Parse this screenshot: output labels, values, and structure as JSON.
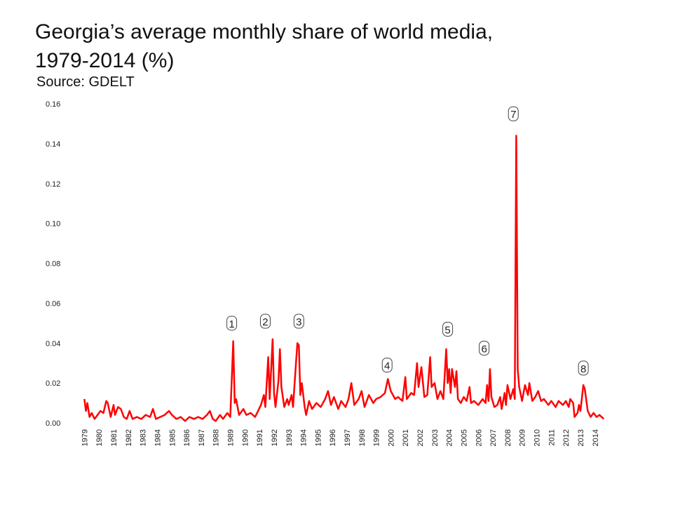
{
  "chart_data": {
    "type": "line",
    "title": [
      "Georgia’s average monthly share of world media,",
      "1979-2014 (%)"
    ],
    "subtitle": "Source: GDELT",
    "series": [
      {
        "name": "Georgia",
        "color": "#ff0000",
        "x": [
          1979.0,
          1979.1,
          1979.2,
          1979.35,
          1979.5,
          1979.7,
          1979.9,
          1980.1,
          1980.3,
          1980.5,
          1980.6,
          1980.8,
          1981.0,
          1981.1,
          1981.3,
          1981.5,
          1981.7,
          1981.9,
          1982.1,
          1982.3,
          1982.6,
          1982.9,
          1983.2,
          1983.5,
          1983.7,
          1983.9,
          1984.2,
          1984.5,
          1984.8,
          1985.0,
          1985.3,
          1985.6,
          1985.9,
          1986.2,
          1986.5,
          1986.8,
          1987.1,
          1987.4,
          1987.6,
          1987.8,
          1988.0,
          1988.3,
          1988.5,
          1988.8,
          1989.0,
          1989.2,
          1989.3,
          1989.4,
          1989.6,
          1989.9,
          1990.1,
          1990.4,
          1990.7,
          1990.9,
          1991.1,
          1991.3,
          1991.4,
          1991.6,
          1991.7,
          1991.9,
          1992.0,
          1992.1,
          1992.3,
          1992.4,
          1992.5,
          1992.7,
          1992.9,
          1993.0,
          1993.2,
          1993.3,
          1993.5,
          1993.6,
          1993.7,
          1993.8,
          1993.9,
          1994.1,
          1994.2,
          1994.4,
          1994.6,
          1994.9,
          1995.2,
          1995.5,
          1995.7,
          1995.9,
          1996.1,
          1996.4,
          1996.6,
          1996.9,
          1997.1,
          1997.3,
          1997.5,
          1997.8,
          1998.0,
          1998.2,
          1998.5,
          1998.8,
          1999.0,
          1999.3,
          1999.6,
          1999.8,
          2000.0,
          2000.3,
          2000.5,
          2000.8,
          2001.0,
          2001.1,
          2001.4,
          2001.6,
          2001.8,
          2001.9,
          2002.1,
          2002.3,
          2002.5,
          2002.7,
          2002.8,
          2003.0,
          2003.2,
          2003.4,
          2003.6,
          2003.8,
          2003.9,
          2004.0,
          2004.1,
          2004.2,
          2004.4,
          2004.5,
          2004.6,
          2004.8,
          2005.0,
          2005.2,
          2005.4,
          2005.5,
          2005.7,
          2006.0,
          2006.3,
          2006.5,
          2006.6,
          2006.7,
          2006.8,
          2006.9,
          2007.1,
          2007.3,
          2007.5,
          2007.6,
          2007.8,
          2007.9,
          2008.0,
          2008.2,
          2008.4,
          2008.5,
          2008.6,
          2008.7,
          2008.8,
          2009.0,
          2009.2,
          2009.4,
          2009.5,
          2009.7,
          2009.9,
          2010.1,
          2010.3,
          2010.5,
          2010.8,
          2011.0,
          2011.3,
          2011.5,
          2011.8,
          2012.0,
          2012.2,
          2012.3,
          2012.5,
          2012.6,
          2012.8,
          2012.9,
          2013.0,
          2013.2,
          2013.3,
          2013.5,
          2013.7,
          2013.9,
          2014.1,
          2014.3,
          2014.6
        ],
        "values": [
          0.012,
          0.006,
          0.01,
          0.003,
          0.005,
          0.002,
          0.004,
          0.006,
          0.005,
          0.011,
          0.01,
          0.003,
          0.009,
          0.004,
          0.008,
          0.007,
          0.003,
          0.002,
          0.006,
          0.002,
          0.003,
          0.002,
          0.004,
          0.003,
          0.007,
          0.002,
          0.003,
          0.004,
          0.006,
          0.004,
          0.002,
          0.003,
          0.001,
          0.003,
          0.002,
          0.003,
          0.002,
          0.004,
          0.006,
          0.002,
          0.001,
          0.004,
          0.002,
          0.005,
          0.003,
          0.041,
          0.01,
          0.012,
          0.004,
          0.007,
          0.004,
          0.005,
          0.003,
          0.006,
          0.009,
          0.014,
          0.008,
          0.033,
          0.012,
          0.042,
          0.015,
          0.008,
          0.021,
          0.037,
          0.018,
          0.008,
          0.012,
          0.009,
          0.014,
          0.008,
          0.03,
          0.04,
          0.039,
          0.014,
          0.02,
          0.008,
          0.004,
          0.011,
          0.007,
          0.01,
          0.008,
          0.012,
          0.016,
          0.009,
          0.013,
          0.007,
          0.011,
          0.008,
          0.012,
          0.02,
          0.009,
          0.012,
          0.016,
          0.008,
          0.014,
          0.01,
          0.012,
          0.013,
          0.015,
          0.022,
          0.016,
          0.012,
          0.013,
          0.011,
          0.023,
          0.012,
          0.015,
          0.014,
          0.03,
          0.018,
          0.028,
          0.013,
          0.014,
          0.033,
          0.018,
          0.02,
          0.012,
          0.016,
          0.012,
          0.037,
          0.02,
          0.027,
          0.015,
          0.027,
          0.018,
          0.026,
          0.012,
          0.01,
          0.013,
          0.011,
          0.018,
          0.01,
          0.011,
          0.009,
          0.012,
          0.01,
          0.019,
          0.011,
          0.027,
          0.013,
          0.008,
          0.009,
          0.013,
          0.007,
          0.015,
          0.009,
          0.019,
          0.012,
          0.017,
          0.012,
          0.144,
          0.027,
          0.018,
          0.011,
          0.019,
          0.014,
          0.02,
          0.011,
          0.013,
          0.016,
          0.011,
          0.012,
          0.009,
          0.011,
          0.008,
          0.011,
          0.009,
          0.011,
          0.008,
          0.012,
          0.01,
          0.003,
          0.005,
          0.009,
          0.006,
          0.019,
          0.017,
          0.006,
          0.003,
          0.005,
          0.003,
          0.004,
          0.002
        ]
      }
    ],
    "annotations": [
      {
        "text": "1",
        "x": 1989.1,
        "y": 0.05
      },
      {
        "text": "2",
        "x": 1991.4,
        "y": 0.051
      },
      {
        "text": "3",
        "x": 1993.7,
        "y": 0.051
      },
      {
        "text": "4",
        "x": 1999.75,
        "y": 0.029
      },
      {
        "text": "5",
        "x": 2003.9,
        "y": 0.047
      },
      {
        "text": "6",
        "x": 2006.4,
        "y": 0.0375
      },
      {
        "text": "7",
        "x": 2008.4,
        "y": 0.155
      },
      {
        "text": "8",
        "x": 2013.2,
        "y": 0.0275
      }
    ],
    "xlim": [
      1978.5,
      2015.5
    ],
    "xticks": [
      1979,
      1980,
      1981,
      1982,
      1983,
      1984,
      1985,
      1986,
      1987,
      1988,
      1989,
      1990,
      1991,
      1992,
      1993,
      1994,
      1995,
      1996,
      1997,
      1998,
      1999,
      2000,
      2001,
      2002,
      2003,
      2004,
      2005,
      2006,
      2007,
      2008,
      2009,
      2010,
      2011,
      2012,
      2013,
      2014
    ],
    "ylim": [
      0,
      0.16
    ],
    "yticks": [
      {
        "value": 0,
        "label": "0.00"
      },
      {
        "value": 0.02,
        "label": "0.02"
      },
      {
        "value": 0.04,
        "label": "0.04"
      },
      {
        "value": 0.06,
        "label": "0.06"
      },
      {
        "value": 0.08,
        "label": "0.08"
      },
      {
        "value": 0.1,
        "label": "0.10"
      },
      {
        "value": 0.12,
        "label": "0.12"
      },
      {
        "value": 0.14,
        "label": "0.14"
      },
      {
        "value": 0.16,
        "label": "0.16"
      }
    ]
  }
}
